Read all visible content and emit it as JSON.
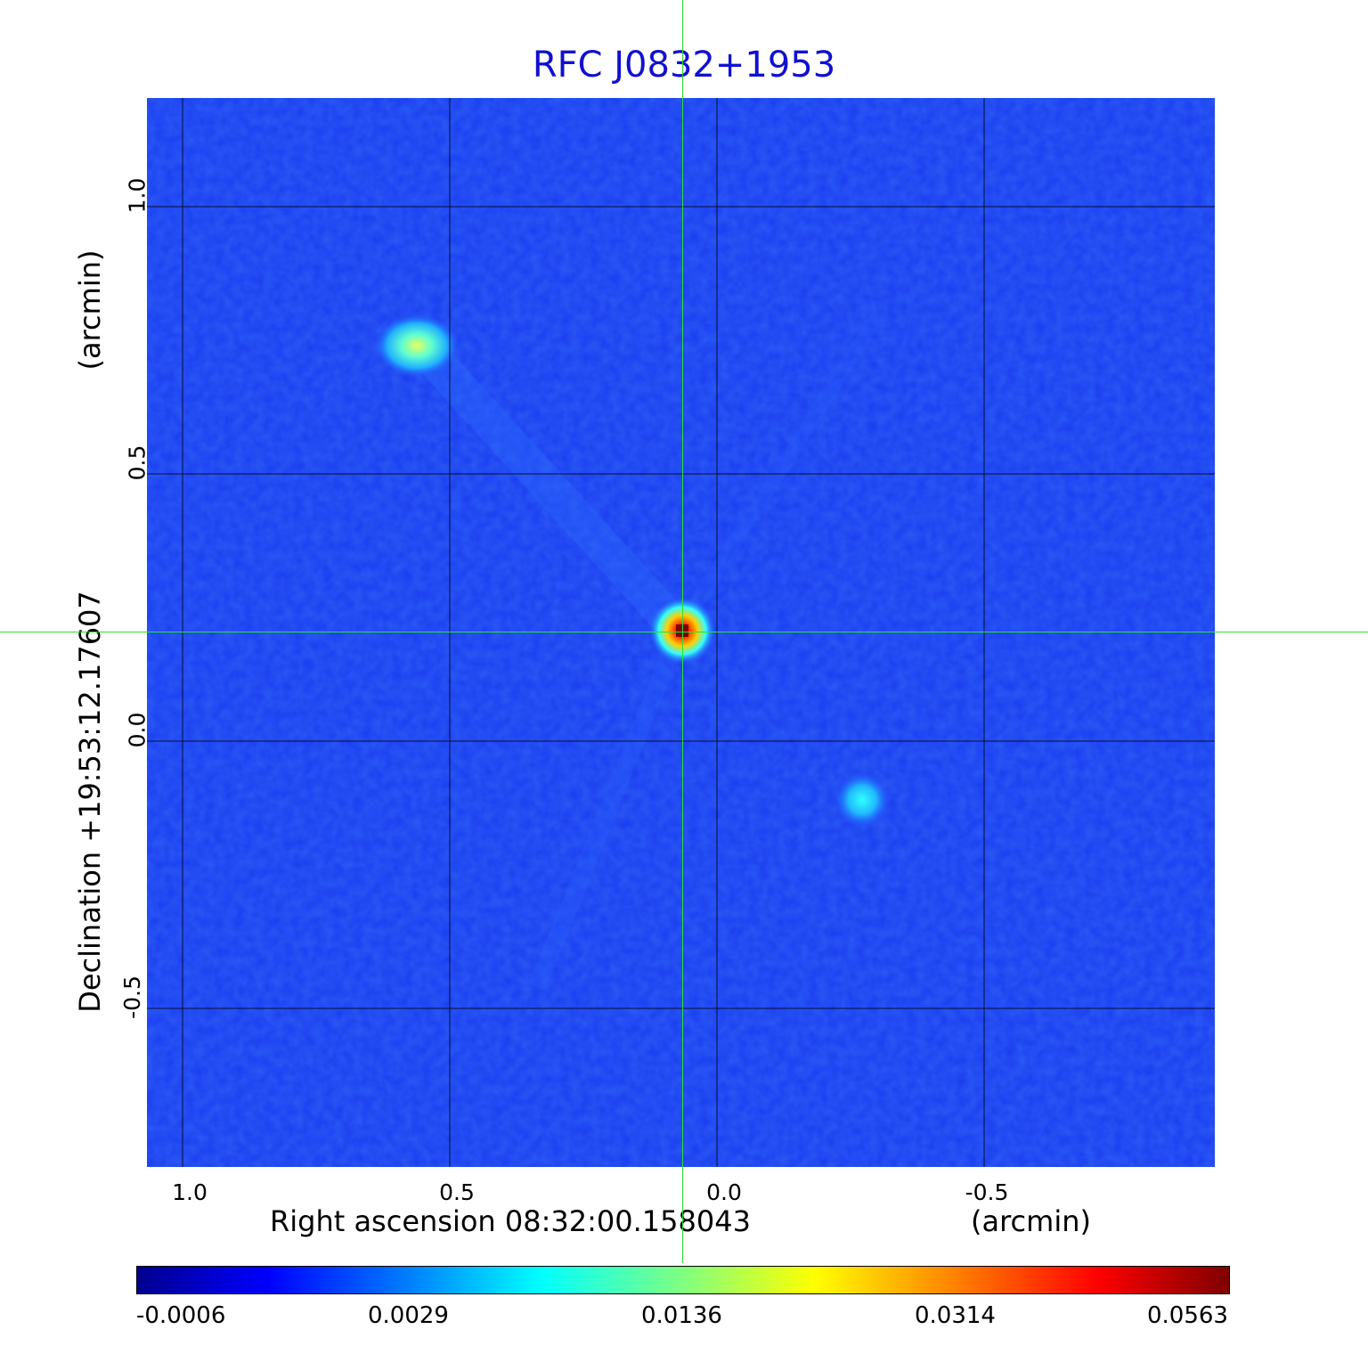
{
  "title": "RFC J0832+1953",
  "x_axis": {
    "label": "Right ascension  08:32:00.158043",
    "unit": "(arcmin)",
    "ticks": [
      "1.0",
      "0.5",
      "0.0",
      "-0.5"
    ]
  },
  "y_axis": {
    "label": "Declination  +19:53:12.17607",
    "unit": "(arcmin)",
    "ticks": [
      "1.0",
      "0.5",
      "0.0",
      "-0.5"
    ]
  },
  "colorbar": {
    "labels": [
      "-0.0006",
      "0.0029",
      "0.0136",
      "0.0314",
      "0.0563"
    ],
    "colormap": "jet"
  },
  "colors": {
    "title": "#1010d0",
    "crosshair": "#2ee02e",
    "background_map": "#1a3cf0"
  },
  "sources": [
    {
      "name": "central",
      "ra_arcmin": 0.06,
      "dec_arcmin": 0.2,
      "peak": 0.0563
    },
    {
      "name": "north-east",
      "ra_arcmin": 0.55,
      "dec_arcmin": 0.74,
      "peak": 0.018
    },
    {
      "name": "south-west",
      "ra_arcmin": -0.28,
      "dec_arcmin": -0.11,
      "peak": 0.009
    }
  ]
}
